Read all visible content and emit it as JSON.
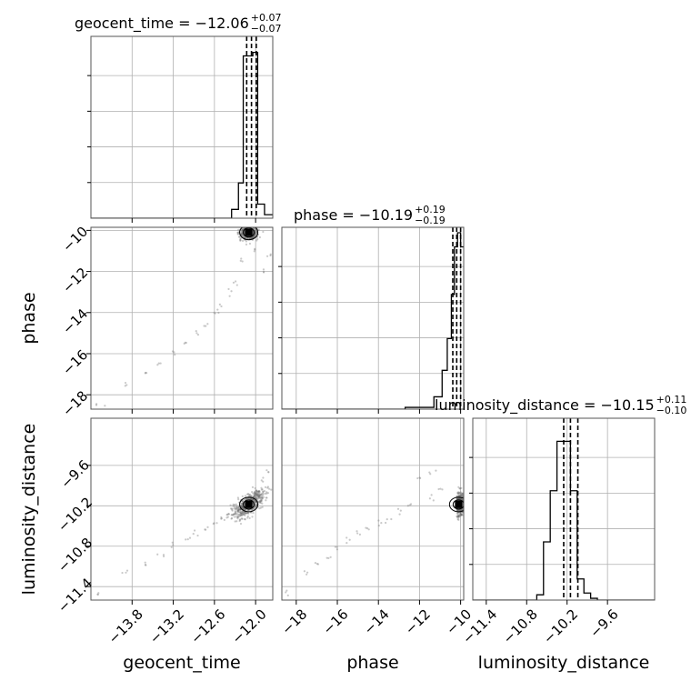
{
  "chart_data": {
    "type": "corner",
    "parameters": [
      "geocent_time",
      "phase",
      "luminosity_distance"
    ],
    "diag_titles": [
      {
        "base": "geocent_time = −12.06",
        "sup": "+0.07",
        "sub": "−0.07"
      },
      {
        "base": "phase = −10.19",
        "sup": "+0.19",
        "sub": "−0.19"
      },
      {
        "base": "luminosity_distance = −10.15",
        "sup": "+0.11",
        "sub": "−0.10"
      }
    ],
    "axis_labels": {
      "x": [
        "geocent_time",
        "phase",
        "luminosity_distance"
      ],
      "y": [
        "phase",
        "luminosity_distance"
      ]
    },
    "ranges": {
      "geocent_time": [
        -14.4,
        -11.75
      ],
      "phase": [
        -18.7,
        -9.85
      ],
      "luminosity_distance": [
        -11.6,
        -8.9
      ]
    },
    "ticks": {
      "geocent_time": [
        "−13.8",
        "−13.2",
        "−12.6",
        "−12.0"
      ],
      "phase": [
        "−18",
        "−16",
        "−14",
        "−12",
        "−10"
      ],
      "luminosity_distance": [
        "−11.4",
        "−10.8",
        "−10.2",
        "−9.6"
      ]
    },
    "tick_values": {
      "geocent_time": [
        -13.8,
        -13.2,
        -12.6,
        -12.0
      ],
      "phase": [
        -18,
        -16,
        -14,
        -12,
        -10
      ],
      "luminosity_distance": [
        -11.4,
        -10.8,
        -10.2,
        -9.6
      ],
      "luminosity_distance_y": [
        -11.4,
        -10.8,
        -10.2,
        -9.6
      ]
    },
    "quantiles": {
      "geocent_time": [
        -12.13,
        -12.06,
        -11.99
      ],
      "phase": [
        -10.38,
        -10.19,
        -10.0
      ],
      "luminosity_distance": [
        -10.25,
        -10.15,
        -10.04
      ]
    },
    "histograms": {
      "geocent_time": {
        "edges": [
          -14.4,
          -12.35,
          -12.25,
          -12.18,
          -12.11,
          -12.04,
          -11.97,
          -11.87,
          -11.75
        ],
        "counts": [
          0,
          0.05,
          0.2,
          0.92,
          0.92,
          0.94,
          0.08,
          0.02
        ]
      },
      "phase": {
        "edges": [
          -18.7,
          -12.7,
          -11.3,
          -10.9,
          -10.65,
          -10.45,
          -10.3,
          -10.15,
          -10.0,
          -9.85
        ],
        "counts": [
          0,
          0.01,
          0.07,
          0.22,
          0.4,
          0.65,
          0.92,
          1.0,
          0.92
        ]
      },
      "luminosity_distance": {
        "edges": [
          -11.6,
          -10.65,
          -10.55,
          -10.45,
          -10.35,
          -10.25,
          -10.15,
          -10.05,
          -9.95,
          -9.85,
          -9.75,
          -9.65,
          -8.9
        ],
        "counts": [
          0,
          0.03,
          0.33,
          0.62,
          0.9,
          0.9,
          0.62,
          0.12,
          0.04,
          0.01,
          0,
          0
        ]
      }
    },
    "scatter": {
      "trail_points": [
        {
          "gt": -14.3,
          "ph": -18.5,
          "ld": -11.5
        },
        {
          "gt": -13.9,
          "ph": -17.6,
          "ld": -11.2
        },
        {
          "gt": -13.6,
          "ph": -17.0,
          "ld": -11.05
        },
        {
          "gt": -13.4,
          "ph": -16.5,
          "ld": -10.95
        },
        {
          "gt": -13.2,
          "ph": -16.0,
          "ld": -10.8
        },
        {
          "gt": -13.0,
          "ph": -15.5,
          "ld": -10.7
        },
        {
          "gt": -12.85,
          "ph": -15.0,
          "ld": -10.6
        },
        {
          "gt": -12.7,
          "ph": -14.5,
          "ld": -10.55
        },
        {
          "gt": -12.6,
          "ph": -14.0,
          "ld": -10.45
        },
        {
          "gt": -12.5,
          "ph": -13.6,
          "ld": -10.4
        },
        {
          "gt": -12.4,
          "ph": -13.0,
          "ld": -10.3
        },
        {
          "gt": -12.3,
          "ph": -12.5,
          "ld": -10.2
        },
        {
          "gt": -12.2,
          "ph": -11.5,
          "ld": -10.1
        },
        {
          "gt": -12.0,
          "ph": -11.0,
          "ld": -9.95
        },
        {
          "gt": -11.9,
          "ph": -12.0,
          "ld": -9.8
        },
        {
          "gt": -11.8,
          "ph": -11.3,
          "ld": -9.7
        }
      ],
      "peaks": {
        "gt": -12.1,
        "ph": -10.1,
        "ld": -10.18
      }
    }
  }
}
